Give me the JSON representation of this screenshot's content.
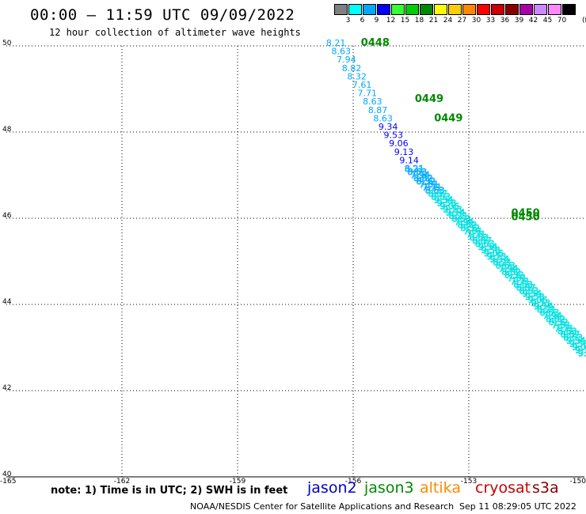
{
  "header": {
    "title": "00:00 – 11:59 UTC 09/09/2022",
    "subtitle": "12 hour collection of altimeter wave heights"
  },
  "legend": {
    "unit": "(ft)",
    "bins": [
      {
        "label": "3",
        "color": "#808080"
      },
      {
        "label": "6",
        "color": "#00ffff"
      },
      {
        "label": "9",
        "color": "#00a8ff"
      },
      {
        "label": "12",
        "color": "#0000ff"
      },
      {
        "label": "15",
        "color": "#33ff33"
      },
      {
        "label": "18",
        "color": "#00cc00"
      },
      {
        "label": "21",
        "color": "#008800"
      },
      {
        "label": "24",
        "color": "#ffff00"
      },
      {
        "label": "27",
        "color": "#ffcc00"
      },
      {
        "label": "30",
        "color": "#ff8800"
      },
      {
        "label": "33",
        "color": "#ff0000"
      },
      {
        "label": "36",
        "color": "#cc0000"
      },
      {
        "label": "39",
        "color": "#880000"
      },
      {
        "label": "42",
        "color": "#aa00aa"
      },
      {
        "label": "45",
        "color": "#cc88ff"
      },
      {
        "label": "70",
        "color": "#ff88ff"
      },
      {
        "label": "",
        "color": "#000000"
      }
    ]
  },
  "map": {
    "lon_range": [
      -165,
      -150
    ],
    "lat_range": [
      40,
      50
    ],
    "lon_ticks": [
      -165,
      -162,
      -159,
      -156,
      -153,
      -150
    ],
    "lon_tick_labels": [
      "-165",
      "-162",
      "-159",
      "-156",
      "-153",
      "-150"
    ],
    "lat_ticks": [
      40,
      42,
      44,
      46,
      48,
      50
    ],
    "lat_tick_labels": [
      "40",
      "42",
      "44",
      "46",
      "48",
      "50"
    ],
    "grid_style": "dotted",
    "time_labels": [
      {
        "text": "0448",
        "lon": -155.8,
        "lat": 50.0,
        "color": "#008800"
      },
      {
        "text": "0449",
        "lon": -154.4,
        "lat": 48.7,
        "color": "#008800"
      },
      {
        "text": "0449",
        "lon": -153.9,
        "lat": 48.25,
        "color": "#008800"
      },
      {
        "text": "0450",
        "lon": -151.9,
        "lat": 46.05,
        "color": "#008800"
      },
      {
        "text": "0450",
        "lon": -151.9,
        "lat": 45.95,
        "color": "#008800"
      }
    ],
    "track_label_values": [
      {
        "text": "8.21",
        "color": "#00a8ff"
      },
      {
        "text": "8.63",
        "color": "#00a8ff"
      },
      {
        "text": "7.94",
        "color": "#00a8ff"
      },
      {
        "text": "8.82",
        "color": "#00a8ff"
      },
      {
        "text": "8.32",
        "color": "#00a8ff"
      },
      {
        "text": "7.61",
        "color": "#00a8ff"
      },
      {
        "text": "7.71",
        "color": "#00a8ff"
      },
      {
        "text": "8.63",
        "color": "#00a8ff"
      },
      {
        "text": "8.87",
        "color": "#00a8ff"
      },
      {
        "text": "8.63",
        "color": "#00a8ff"
      },
      {
        "text": "9.34",
        "color": "#0000ff"
      },
      {
        "text": "9.53",
        "color": "#0000ff"
      },
      {
        "text": "9.06",
        "color": "#0000ff"
      },
      {
        "text": "9.13",
        "color": "#0000ff"
      },
      {
        "text": "9.14",
        "color": "#0000ff"
      }
    ],
    "track_start": {
      "lon": -156.7,
      "lat": 50.0
    },
    "track_end": {
      "lon": -150.0,
      "lat": 42.8
    }
  },
  "footer": {
    "note": "note: 1) Time is in UTC; 2) SWH is in feet",
    "satellites": [
      {
        "name": "jason2",
        "color": "#0000cc"
      },
      {
        "name": "jason3",
        "color": "#008800"
      },
      {
        "name": "altika",
        "color": "#ff8800"
      },
      {
        "name": "cryosat",
        "color": "#cc0000"
      },
      {
        "name": "s3a",
        "color": "#880000"
      }
    ],
    "credit": "NOAA/NESDIS Center for Satellite Applications and Research",
    "timestamp": "Sep 11 08:29:05 UTC 2022"
  }
}
